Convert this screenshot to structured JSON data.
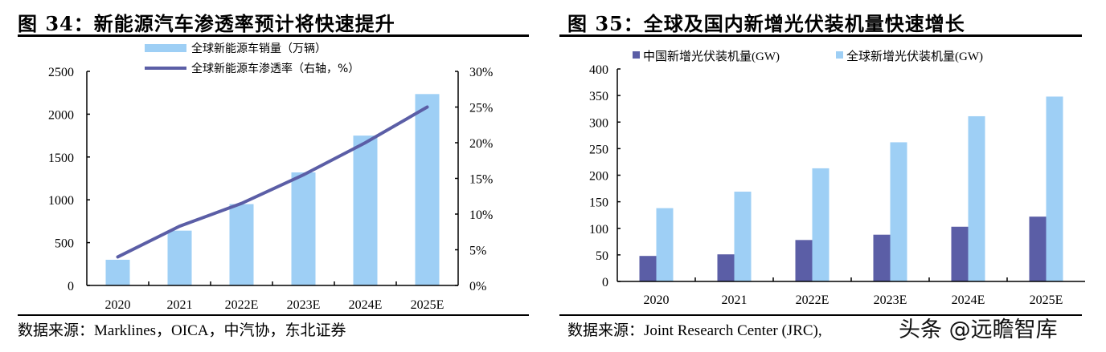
{
  "colors": {
    "bar_light_blue": "#9ECFF5",
    "bar_dark_purple": "#5B5EA6",
    "line_purple": "#5B5EA6",
    "axis": "#000000"
  },
  "left": {
    "title": "图 34：新能源汽车渗透率预计将快速提升",
    "legend": {
      "bar_label": "全球新能源车销量（万辆）",
      "line_label": "全球新能源车渗透率（右轴，%）"
    },
    "source": "数据来源：Marklines，OICA，中汽协，东北证券"
  },
  "right": {
    "title": "图 35：全球及国内新增光伏装机量快速增长",
    "legend": {
      "series1_label": "中国新增光伏装机量(GW)",
      "series2_label": "全球新增光伏装机量(GW)"
    },
    "source": "数据来源：Joint Research Center (JRC),",
    "watermark": "头条 @远瞻智库"
  },
  "chart_data": [
    {
      "type": "bar+line",
      "title": "图 34：新能源汽车渗透率预计将快速提升",
      "categories": [
        "2020",
        "2021",
        "2022E",
        "2023E",
        "2024E",
        "2025E"
      ],
      "series": [
        {
          "name": "全球新能源车销量（万辆）",
          "type": "bar",
          "axis": "left",
          "color": "#9ECFF5",
          "values": [
            300,
            640,
            950,
            1320,
            1750,
            2235
          ]
        },
        {
          "name": "全球新能源车渗透率（右轴，%）",
          "type": "line",
          "axis": "right",
          "color": "#5B5EA6",
          "values": [
            4.0,
            8.3,
            11.5,
            15.5,
            20.0,
            25.0
          ]
        }
      ],
      "y_left": {
        "ylim": [
          0,
          2500
        ],
        "ticks": [
          "0",
          "500",
          "1000",
          "1500",
          "2000",
          "2500"
        ]
      },
      "y_right": {
        "ylim": [
          0,
          30
        ],
        "ticks": [
          "0%",
          "5%",
          "10%",
          "15%",
          "20%",
          "25%",
          "30%"
        ]
      },
      "xlabel": "",
      "ylabel": "",
      "grid": false,
      "legend_position": "top"
    },
    {
      "type": "bar",
      "title": "图 35：全球及国内新增光伏装机量快速增长",
      "categories": [
        "2020",
        "2021",
        "2022E",
        "2023E",
        "2024E",
        "2025E"
      ],
      "series": [
        {
          "name": "中国新增光伏装机量(GW)",
          "color": "#5B5EA6",
          "values": [
            48,
            51,
            78,
            88,
            103,
            122
          ]
        },
        {
          "name": "全球新增光伏装机量(GW)",
          "color": "#9ECFF5",
          "values": [
            138,
            169,
            213,
            262,
            311,
            348
          ]
        }
      ],
      "ylim": [
        0,
        400
      ],
      "yticks": [
        "0",
        "50",
        "100",
        "150",
        "200",
        "250",
        "300",
        "350",
        "400"
      ],
      "xlabel": "",
      "ylabel": "",
      "grid": false,
      "legend_position": "top"
    }
  ]
}
